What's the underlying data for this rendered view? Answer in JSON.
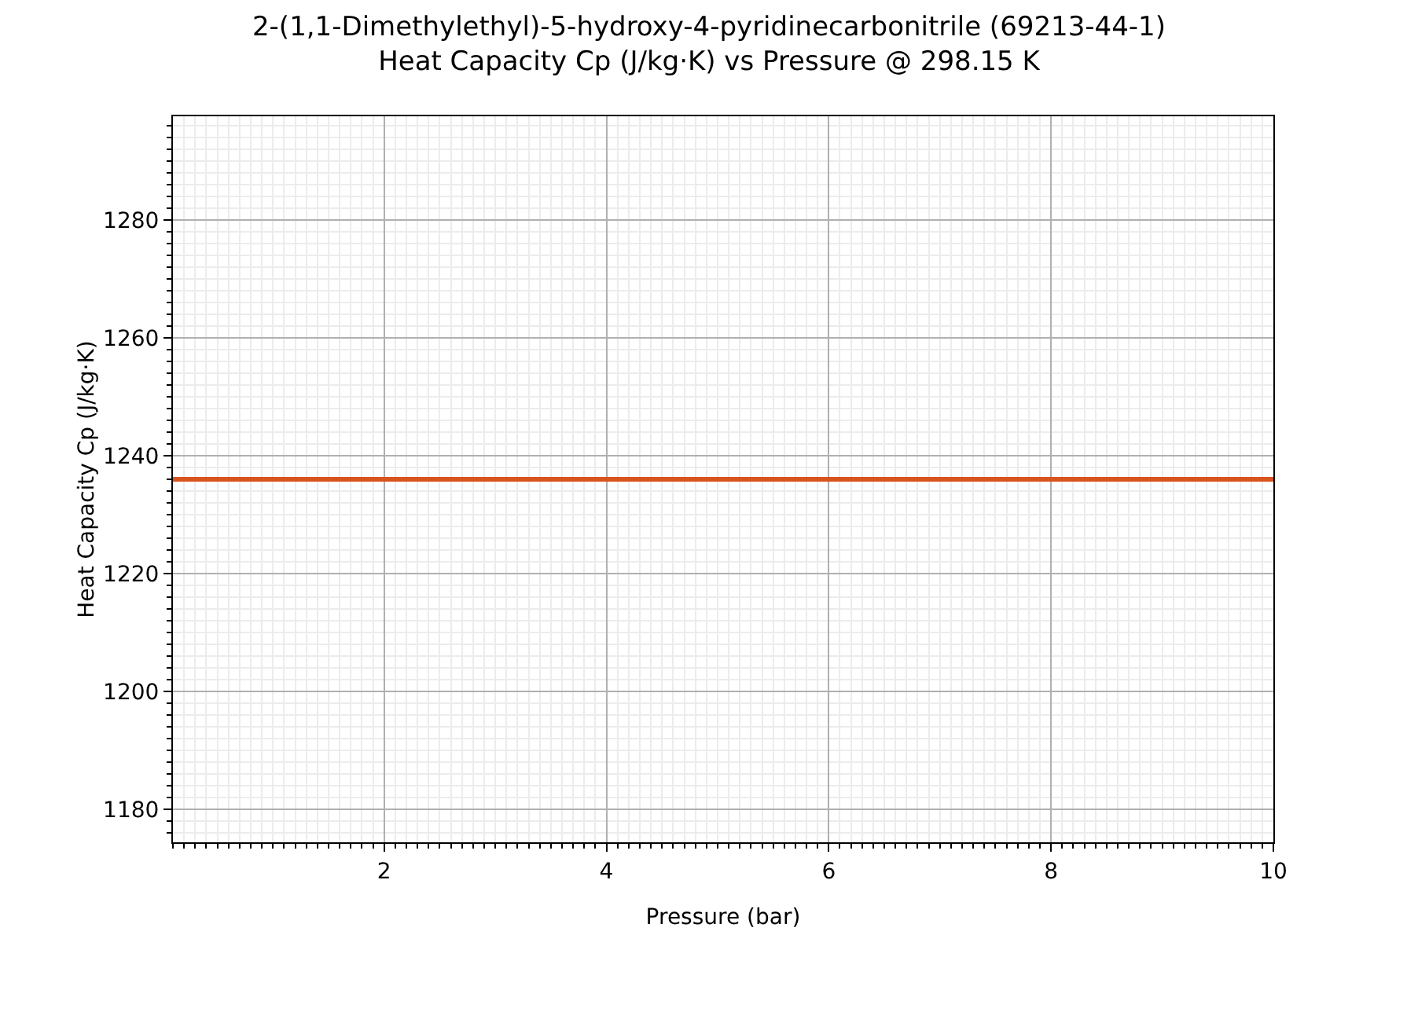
{
  "chart_data": {
    "type": "line",
    "title": "2-(1,1-Dimethylethyl)-5-hydroxy-4-pyridinecarbonitrile (69213-44-1)\nHeat Capacity Cp (J/kg·K) vs Pressure @ 298.15 K",
    "xlabel": "Pressure (bar)",
    "ylabel": "Heat Capacity Cp (J/kg·K)",
    "series": [
      {
        "color": "#d9531e",
        "x": [
          0.1,
          10
        ],
        "values": [
          1236,
          1236
        ]
      }
    ],
    "xlim": [
      0.1,
      10
    ],
    "xticks": [
      2,
      4,
      6,
      8,
      10
    ],
    "ylim": [
      1174.4,
      1297.6
    ],
    "yticks": [
      1180,
      1200,
      1220,
      1240,
      1260,
      1280
    ],
    "grid": true,
    "legend": false,
    "marker": "none",
    "line_style": "solid"
  }
}
